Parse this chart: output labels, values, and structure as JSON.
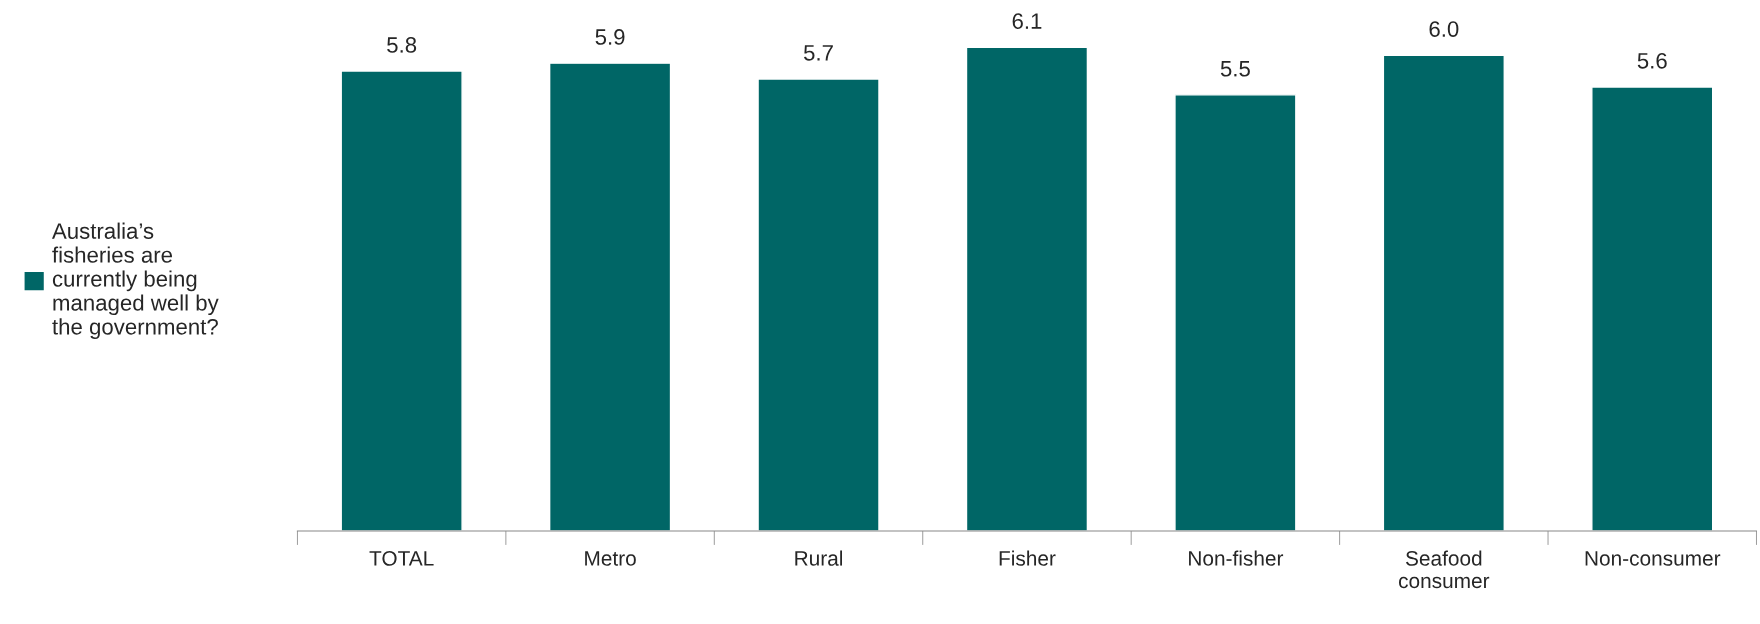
{
  "chart_data": {
    "type": "bar",
    "categories": [
      "TOTAL",
      "Metro",
      "Rural",
      "Fisher",
      "Non-fisher",
      "Seafood\nconsumer",
      "Non-consumer"
    ],
    "series": [
      {
        "name": "Australia’s\nfisheries are\ncurrently being\nmanaged well by\nthe government?",
        "color": "#006666",
        "values": [
          5.8,
          5.9,
          5.7,
          6.1,
          5.5,
          6.0,
          5.6
        ],
        "value_labels": [
          "5.8",
          "5.9",
          "5.7",
          "6.1",
          "5.5",
          "6.0",
          "5.6"
        ]
      }
    ],
    "legend": "left",
    "grid": false
  }
}
